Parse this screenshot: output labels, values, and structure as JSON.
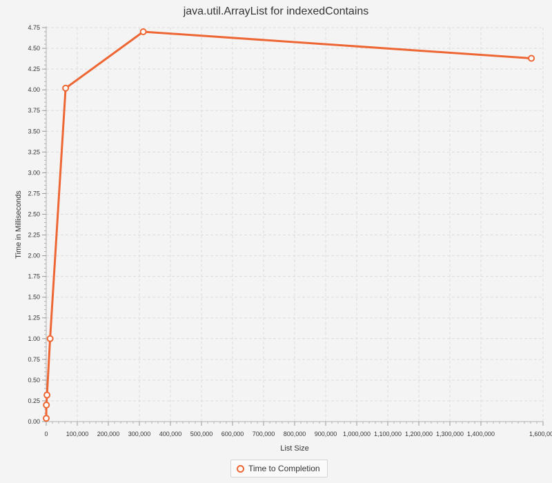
{
  "chart_data": {
    "type": "line",
    "title": "java.util.ArrayList for indexedContains",
    "xlabel": "List Size",
    "ylabel": "Time in Milliseconds",
    "xlim": [
      0,
      1600000
    ],
    "ylim": [
      0,
      4.75
    ],
    "x_ticks": [
      0,
      100000,
      200000,
      300000,
      400000,
      500000,
      600000,
      700000,
      800000,
      900000,
      1000000,
      1100000,
      1200000,
      1300000,
      1400000,
      1600000
    ],
    "x_tick_labels": [
      "0",
      "100,000",
      "200,000",
      "300,000",
      "400,000",
      "500,000",
      "600,000",
      "700,000",
      "800,000",
      "900,000",
      "1,000,000",
      "1,100,000",
      "1,200,000",
      "1,300,000",
      "1,400,000",
      "1,600,000"
    ],
    "y_ticks": [
      0,
      0.25,
      0.5,
      0.75,
      1.0,
      1.25,
      1.5,
      1.75,
      2.0,
      2.25,
      2.5,
      2.75,
      3.0,
      3.25,
      3.5,
      3.75,
      4.0,
      4.25,
      4.5,
      4.75
    ],
    "y_tick_labels": [
      "0.00",
      "0.25",
      "0.50",
      "0.75",
      "1.00",
      "1.25",
      "1.50",
      "1.75",
      "2.00",
      "2.25",
      "2.50",
      "2.75",
      "3.00",
      "3.25",
      "3.50",
      "3.75",
      "4.00",
      "4.25",
      "4.50",
      "4.75"
    ],
    "grid": true,
    "legend_position": "bottom-center",
    "color": "#ee6633",
    "series": [
      {
        "name": "Time to Completion",
        "x": [
          100,
          500,
          2500,
          12500,
          62500,
          312500,
          1562500
        ],
        "y": [
          0.04,
          0.2,
          0.32,
          1.0,
          4.02,
          4.7,
          4.38
        ]
      }
    ]
  }
}
